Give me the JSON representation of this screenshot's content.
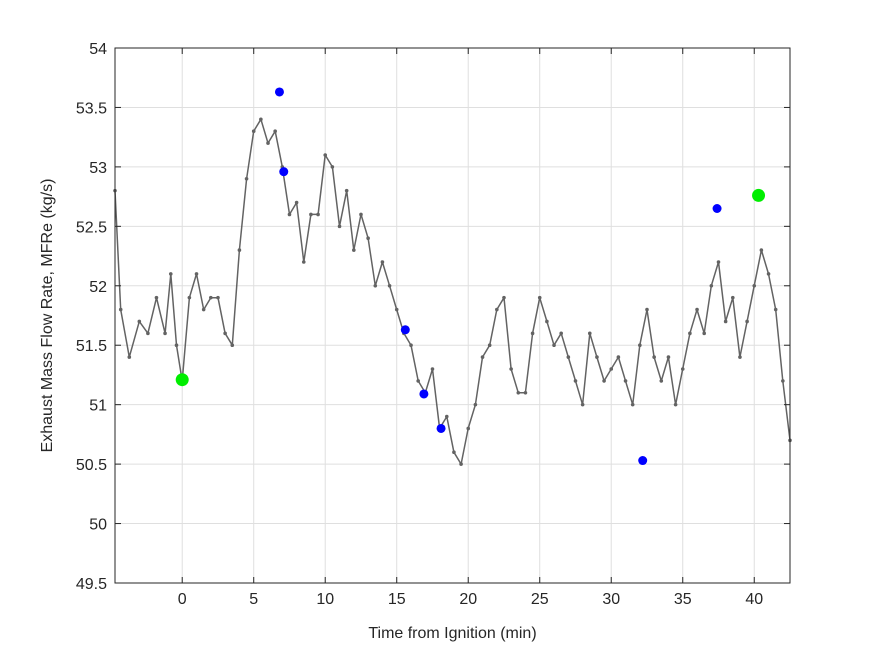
{
  "chart_data": {
    "type": "scatter",
    "title": "",
    "xlabel": "Time from Ignition (min)",
    "ylabel": "Exhaust Mass Flow Rate, MFRe (kg/s)",
    "xlim": [
      -4.7,
      42.5
    ],
    "ylim": [
      49.5,
      54
    ],
    "xticks": [
      0,
      5,
      10,
      15,
      20,
      25,
      30,
      35,
      40
    ],
    "yticks": [
      49.5,
      50,
      50.5,
      51,
      51.5,
      52,
      52.5,
      53,
      53.5,
      54
    ],
    "grid": true,
    "legend": "none",
    "series": [
      {
        "role": "trace",
        "color": "#636363",
        "points": [
          [
            -4.7,
            52.8
          ],
          [
            -4.3,
            51.8
          ],
          [
            -3.7,
            51.4
          ],
          [
            -3.0,
            51.7
          ],
          [
            -2.4,
            51.6
          ],
          [
            -1.8,
            51.9
          ],
          [
            -1.2,
            51.6
          ],
          [
            -0.8,
            52.1
          ],
          [
            -0.4,
            51.5
          ],
          [
            0.0,
            51.2
          ],
          [
            0.5,
            51.9
          ],
          [
            1.0,
            52.1
          ],
          [
            1.5,
            51.8
          ],
          [
            2.0,
            51.9
          ],
          [
            2.5,
            51.9
          ],
          [
            3.0,
            51.6
          ],
          [
            3.5,
            51.5
          ],
          [
            4.0,
            52.3
          ],
          [
            4.5,
            52.9
          ],
          [
            5.0,
            53.3
          ],
          [
            5.5,
            53.4
          ],
          [
            6.0,
            53.2
          ],
          [
            6.5,
            53.3
          ],
          [
            7.0,
            53.0
          ],
          [
            7.5,
            52.6
          ],
          [
            8.0,
            52.7
          ],
          [
            8.5,
            52.2
          ],
          [
            9.0,
            52.6
          ],
          [
            9.5,
            52.6
          ],
          [
            10.0,
            53.1
          ],
          [
            10.5,
            53.0
          ],
          [
            11.0,
            52.5
          ],
          [
            11.5,
            52.8
          ],
          [
            12.0,
            52.3
          ],
          [
            12.5,
            52.6
          ],
          [
            13.0,
            52.4
          ],
          [
            13.5,
            52.0
          ],
          [
            14.0,
            52.2
          ],
          [
            14.5,
            52.0
          ],
          [
            15.0,
            51.8
          ],
          [
            15.5,
            51.6
          ],
          [
            16.0,
            51.5
          ],
          [
            16.5,
            51.2
          ],
          [
            17.0,
            51.1
          ],
          [
            17.5,
            51.3
          ],
          [
            18.0,
            50.8
          ],
          [
            18.5,
            50.9
          ],
          [
            19.0,
            50.6
          ],
          [
            19.5,
            50.5
          ],
          [
            20.0,
            50.8
          ],
          [
            20.5,
            51.0
          ],
          [
            21.0,
            51.4
          ],
          [
            21.5,
            51.5
          ],
          [
            22.0,
            51.8
          ],
          [
            22.5,
            51.9
          ],
          [
            23.0,
            51.3
          ],
          [
            23.5,
            51.1
          ],
          [
            24.0,
            51.1
          ],
          [
            24.5,
            51.6
          ],
          [
            25.0,
            51.9
          ],
          [
            25.5,
            51.7
          ],
          [
            26.0,
            51.5
          ],
          [
            26.5,
            51.6
          ],
          [
            27.0,
            51.4
          ],
          [
            27.5,
            51.2
          ],
          [
            28.0,
            51.0
          ],
          [
            28.5,
            51.6
          ],
          [
            29.0,
            51.4
          ],
          [
            29.5,
            51.2
          ],
          [
            30.0,
            51.3
          ],
          [
            30.5,
            51.4
          ],
          [
            31.0,
            51.2
          ],
          [
            31.5,
            51.0
          ],
          [
            32.0,
            51.5
          ],
          [
            32.5,
            51.8
          ],
          [
            33.0,
            51.4
          ],
          [
            33.5,
            51.2
          ],
          [
            34.0,
            51.4
          ],
          [
            34.5,
            51.0
          ],
          [
            35.0,
            51.3
          ],
          [
            35.5,
            51.6
          ],
          [
            36.0,
            51.8
          ],
          [
            36.5,
            51.6
          ],
          [
            37.0,
            52.0
          ],
          [
            37.5,
            52.2
          ],
          [
            38.0,
            51.7
          ],
          [
            38.5,
            51.9
          ],
          [
            39.0,
            51.4
          ],
          [
            39.5,
            51.7
          ],
          [
            40.0,
            52.0
          ],
          [
            40.5,
            52.3
          ],
          [
            41.0,
            52.1
          ],
          [
            41.5,
            51.8
          ],
          [
            42.0,
            51.2
          ],
          [
            42.5,
            50.7
          ]
        ]
      },
      {
        "role": "markers",
        "color": "#0000ff",
        "points": [
          [
            6.8,
            53.63
          ],
          [
            7.1,
            52.96
          ],
          [
            15.6,
            51.63
          ],
          [
            16.9,
            51.09
          ],
          [
            18.1,
            50.8
          ],
          [
            32.2,
            50.53
          ],
          [
            37.4,
            52.65
          ]
        ]
      },
      {
        "role": "endpoints",
        "color": "#00ee00",
        "points": [
          [
            0.0,
            51.21
          ],
          [
            40.3,
            52.76
          ]
        ]
      }
    ]
  }
}
